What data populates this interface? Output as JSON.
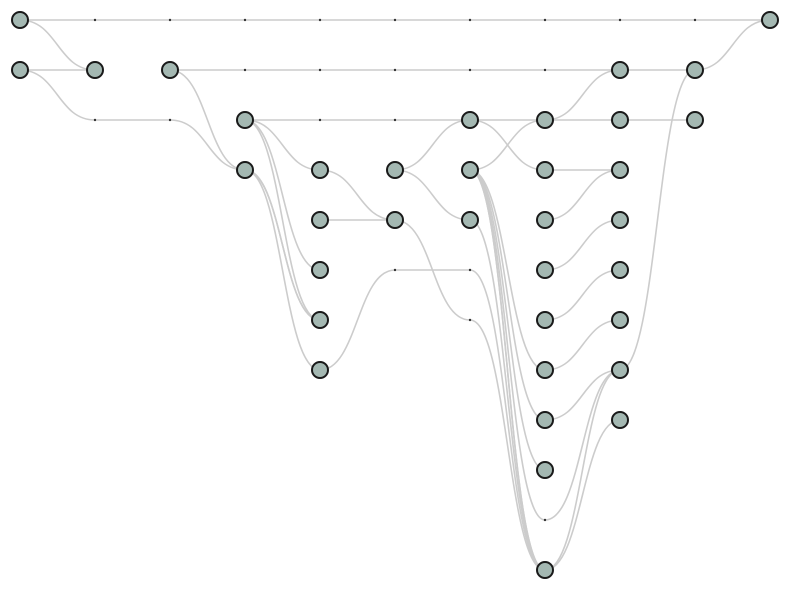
{
  "diagram": {
    "kind": "layered-graph",
    "node_fill": "#a4b8b2",
    "node_stroke": "#1a1a1a",
    "edge_color": "#cccccc",
    "layers": 11,
    "nodes": [
      {
        "id": "n0",
        "layer": 0,
        "row": 0
      },
      {
        "id": "n1",
        "layer": 0,
        "row": 1
      },
      {
        "id": "n2",
        "layer": 1,
        "row": 1
      },
      {
        "id": "n3",
        "layer": 2,
        "row": 1
      },
      {
        "id": "n4",
        "layer": 3,
        "row": 2
      },
      {
        "id": "n5",
        "layer": 3,
        "row": 3
      },
      {
        "id": "n6",
        "layer": 4,
        "row": 3
      },
      {
        "id": "n7",
        "layer": 4,
        "row": 4
      },
      {
        "id": "n8",
        "layer": 4,
        "row": 5
      },
      {
        "id": "n9",
        "layer": 4,
        "row": 6
      },
      {
        "id": "n10",
        "layer": 4,
        "row": 7
      },
      {
        "id": "n11",
        "layer": 5,
        "row": 3
      },
      {
        "id": "n12",
        "layer": 5,
        "row": 4
      },
      {
        "id": "n13",
        "layer": 6,
        "row": 2
      },
      {
        "id": "n14",
        "layer": 6,
        "row": 3
      },
      {
        "id": "n15",
        "layer": 6,
        "row": 4
      },
      {
        "id": "n16",
        "layer": 7,
        "row": 2
      },
      {
        "id": "n17",
        "layer": 7,
        "row": 3
      },
      {
        "id": "n18",
        "layer": 7,
        "row": 4
      },
      {
        "id": "n19",
        "layer": 7,
        "row": 5
      },
      {
        "id": "n20",
        "layer": 7,
        "row": 6
      },
      {
        "id": "n21",
        "layer": 7,
        "row": 7
      },
      {
        "id": "n22",
        "layer": 7,
        "row": 8
      },
      {
        "id": "n23",
        "layer": 7,
        "row": 9
      },
      {
        "id": "n24",
        "layer": 7,
        "row": 11
      },
      {
        "id": "n25",
        "layer": 8,
        "row": 1
      },
      {
        "id": "n26",
        "layer": 8,
        "row": 2
      },
      {
        "id": "n27",
        "layer": 8,
        "row": 3
      },
      {
        "id": "n28",
        "layer": 8,
        "row": 4
      },
      {
        "id": "n29",
        "layer": 8,
        "row": 5
      },
      {
        "id": "n30",
        "layer": 8,
        "row": 6
      },
      {
        "id": "n31",
        "layer": 8,
        "row": 7
      },
      {
        "id": "n32",
        "layer": 8,
        "row": 8
      },
      {
        "id": "n33",
        "layer": 9,
        "row": 1
      },
      {
        "id": "n34",
        "layer": 9,
        "row": 2
      },
      {
        "id": "n35",
        "layer": 10,
        "row": 0
      }
    ],
    "dummies": [
      {
        "id": "d1",
        "layer": 1,
        "row": 0
      },
      {
        "id": "d2",
        "layer": 2,
        "row": 0
      },
      {
        "id": "d3",
        "layer": 3,
        "row": 0
      },
      {
        "id": "d4",
        "layer": 4,
        "row": 0
      },
      {
        "id": "d5",
        "layer": 5,
        "row": 0
      },
      {
        "id": "d6",
        "layer": 6,
        "row": 0
      },
      {
        "id": "d7",
        "layer": 7,
        "row": 0
      },
      {
        "id": "d8",
        "layer": 8,
        "row": 0
      },
      {
        "id": "d9",
        "layer": 9,
        "row": 0
      },
      {
        "id": "e3",
        "layer": 3,
        "row": 1
      },
      {
        "id": "e4",
        "layer": 4,
        "row": 1
      },
      {
        "id": "e5",
        "layer": 5,
        "row": 1
      },
      {
        "id": "e6",
        "layer": 6,
        "row": 1
      },
      {
        "id": "e7",
        "layer": 7,
        "row": 1
      },
      {
        "id": "f1",
        "layer": 1,
        "row": 2
      },
      {
        "id": "f2",
        "layer": 2,
        "row": 2
      },
      {
        "id": "g4",
        "layer": 4,
        "row": 2
      },
      {
        "id": "g5",
        "layer": 5,
        "row": 2
      },
      {
        "id": "h5",
        "layer": 5,
        "row": 5
      },
      {
        "id": "h6",
        "layer": 6,
        "row": 5
      },
      {
        "id": "i6",
        "layer": 6,
        "row": 6
      },
      {
        "id": "j7",
        "layer": 7,
        "row": 10
      }
    ],
    "edges": [
      [
        "n0",
        "d1"
      ],
      [
        "d1",
        "d2"
      ],
      [
        "d2",
        "d3"
      ],
      [
        "d3",
        "d4"
      ],
      [
        "d4",
        "d5"
      ],
      [
        "d5",
        "d6"
      ],
      [
        "d6",
        "d7"
      ],
      [
        "d7",
        "d8"
      ],
      [
        "d8",
        "d9"
      ],
      [
        "d9",
        "n35"
      ],
      [
        "n0",
        "n2"
      ],
      [
        "n1",
        "n2"
      ],
      [
        "n1",
        "f1"
      ],
      [
        "f1",
        "f2"
      ],
      [
        "f2",
        "n5"
      ],
      [
        "n3",
        "e3"
      ],
      [
        "e3",
        "e4"
      ],
      [
        "e4",
        "e5"
      ],
      [
        "e5",
        "e6"
      ],
      [
        "e6",
        "e7"
      ],
      [
        "e7",
        "n25"
      ],
      [
        "n25",
        "n33"
      ],
      [
        "n33",
        "n35"
      ],
      [
        "n3",
        "n5"
      ],
      [
        "n4",
        "g4"
      ],
      [
        "g4",
        "g5"
      ],
      [
        "g5",
        "n13"
      ],
      [
        "n4",
        "n6"
      ],
      [
        "n4",
        "n9"
      ],
      [
        "n4",
        "n8"
      ],
      [
        "n5",
        "n9"
      ],
      [
        "n5",
        "n10"
      ],
      [
        "n5",
        "n9"
      ],
      [
        "n6",
        "n12"
      ],
      [
        "n7",
        "n12"
      ],
      [
        "n10",
        "h5"
      ],
      [
        "h5",
        "h6"
      ],
      [
        "h6",
        "n24"
      ],
      [
        "n11",
        "n13"
      ],
      [
        "n11",
        "n15"
      ],
      [
        "n12",
        "i6"
      ],
      [
        "i6",
        "n24"
      ],
      [
        "n13",
        "n16"
      ],
      [
        "n13",
        "n17"
      ],
      [
        "n14",
        "n16"
      ],
      [
        "n14",
        "n21"
      ],
      [
        "n14",
        "n22"
      ],
      [
        "n14",
        "n23"
      ],
      [
        "n14",
        "n24"
      ],
      [
        "n14",
        "n24"
      ],
      [
        "n14",
        "j7"
      ],
      [
        "n15",
        "n24"
      ],
      [
        "n16",
        "n25"
      ],
      [
        "n16",
        "n26"
      ],
      [
        "n26",
        "n34"
      ],
      [
        "n17",
        "n27"
      ],
      [
        "n18",
        "n27"
      ],
      [
        "n19",
        "n28"
      ],
      [
        "n20",
        "n29"
      ],
      [
        "n21",
        "n30"
      ],
      [
        "n22",
        "n31"
      ],
      [
        "n24",
        "n32"
      ],
      [
        "n24",
        "n31"
      ],
      [
        "j7",
        "n31"
      ],
      [
        "n31",
        "n33"
      ]
    ]
  }
}
